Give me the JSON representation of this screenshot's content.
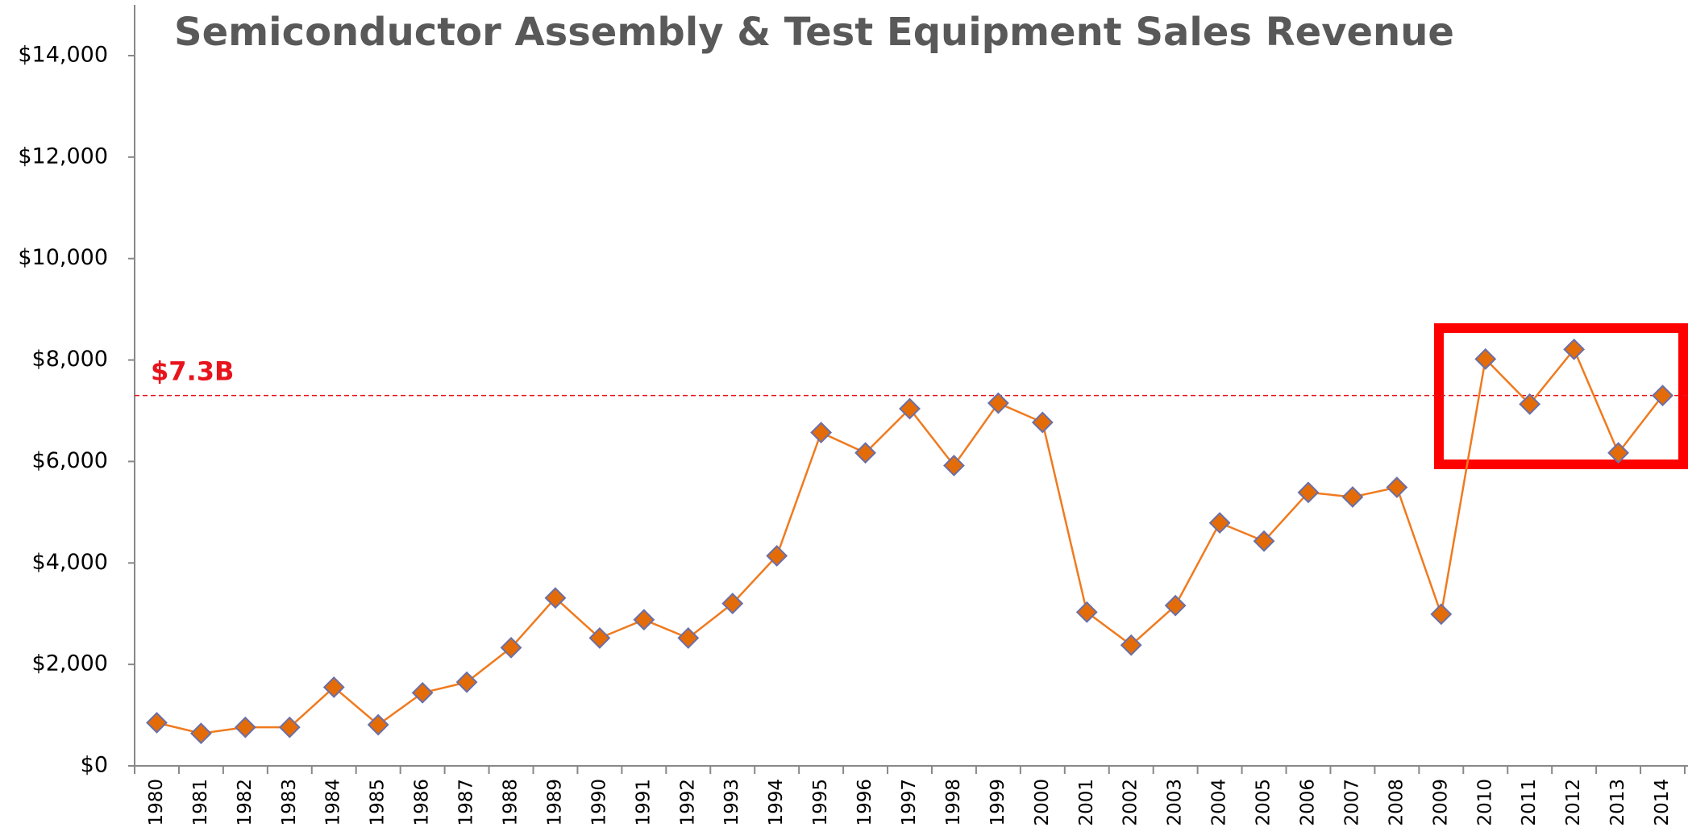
{
  "chart_data": {
    "type": "line",
    "title": "Semiconductor Assembly & Test Equipment Sales Revenue",
    "categories": [
      "1980",
      "1981",
      "1982",
      "1983",
      "1984",
      "1985",
      "1986",
      "1987",
      "1988",
      "1989",
      "1990",
      "1991",
      "1992",
      "1993",
      "1994",
      "1995",
      "1996",
      "1997",
      "1998",
      "1999",
      "2000",
      "2001",
      "2002",
      "2003",
      "2004",
      "2005",
      "2006",
      "2007",
      "2008",
      "2009",
      "2010",
      "2011",
      "2012",
      "2013",
      "2014"
    ],
    "series": [
      {
        "name": "Sales Revenue",
        "color": "#f07a1e",
        "marker_color": "#e36c09",
        "marker_edge": "#6a6fa8",
        "values": [
          850,
          640,
          760,
          760,
          1550,
          810,
          1440,
          1650,
          2330,
          3310,
          2520,
          2880,
          2520,
          3200,
          4140,
          6570,
          6170,
          7040,
          5920,
          7150,
          6770,
          3030,
          2380,
          3160,
          4790,
          4430,
          5390,
          5300,
          5490,
          2990,
          8020,
          7130,
          8210,
          6170,
          7300
        ]
      }
    ],
    "ylim": [
      0,
      15000
    ],
    "yticks": [
      {
        "value": 0,
        "label": "$0"
      },
      {
        "value": 2000,
        "label": "$2,000"
      },
      {
        "value": 4000,
        "label": "$4,000"
      },
      {
        "value": 6000,
        "label": "$6,000"
      },
      {
        "value": 8000,
        "label": "$8,000"
      },
      {
        "value": 10000,
        "label": "$10,000"
      },
      {
        "value": 12000,
        "label": "$12,000"
      },
      {
        "value": 14000,
        "label": "$14,000"
      }
    ],
    "reference_line": {
      "value": 7300,
      "label": "$7.3B",
      "color": "#e8141c"
    },
    "grid": false
  }
}
